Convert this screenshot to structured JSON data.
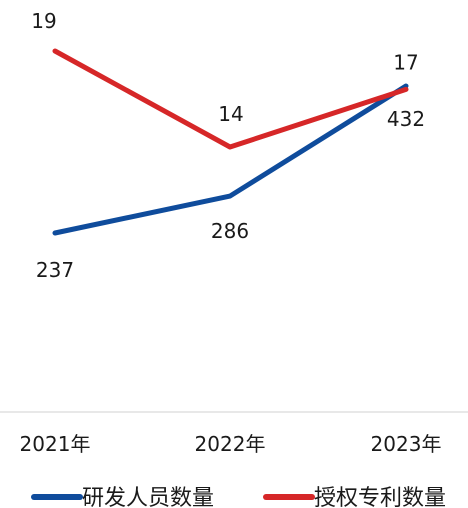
{
  "chart_data": {
    "type": "line",
    "categories": [
      "2021年",
      "2022年",
      "2023年"
    ],
    "series": [
      {
        "name": "研发人员数量",
        "values": [
          237,
          286,
          432
        ],
        "color": "#0f4c9c"
      },
      {
        "name": "授权专利数量",
        "values": [
          19,
          14,
          17
        ],
        "color": "#d62728"
      }
    ],
    "legend_position": "bottom",
    "grid": false
  }
}
